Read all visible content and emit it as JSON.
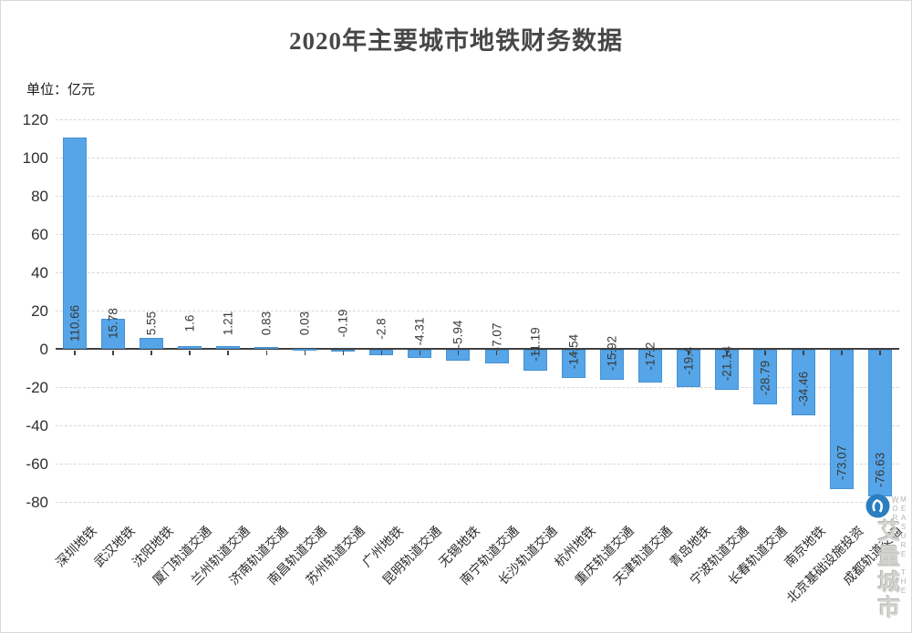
{
  "chart_data": {
    "type": "bar",
    "title": "2020年主要城市地铁财务数据",
    "unit_label": "单位：亿元",
    "categories": [
      "深圳地铁",
      "武汉地铁",
      "沈阳地铁",
      "厦门轨道交通",
      "兰州轨道交通",
      "济南轨道交通",
      "南昌轨道交通",
      "苏州轨道交通",
      "广州地铁",
      "昆明轨道交通",
      "无锡地铁",
      "南宁轨道交通",
      "长沙轨道交通",
      "杭州地铁",
      "重庆轨道交通",
      "天津轨道交通",
      "青岛地铁",
      "宁波轨道交通",
      "长春轨道交通",
      "南京地铁",
      "北京基础设施投资",
      "成都轨道交通"
    ],
    "values": [
      110.66,
      15.78,
      5.55,
      1.6,
      1.21,
      0.83,
      0.03,
      -0.19,
      -2.8,
      -4.31,
      -5.94,
      -7.07,
      -11.19,
      -14.54,
      -15.92,
      -17.2,
      -19.4,
      -21.14,
      -28.79,
      -34.46,
      -73.07,
      -76.63
    ],
    "value_labels": [
      "110.66",
      "15.78",
      "5.55",
      "1.6",
      "1.21",
      "0.83",
      "0.03",
      "-0.19",
      "-2.8",
      "-4.31",
      "-5.94",
      "-7.07",
      "-11.19",
      "-14.54",
      "-15.92",
      "-17.2",
      "-19.4",
      "-21.14",
      "-28.79",
      "-34.46",
      "-73.07",
      "-76.63"
    ],
    "yticks": [
      120,
      100,
      80,
      60,
      40,
      20,
      0,
      -20,
      -40,
      -60,
      -80
    ],
    "ylim": [
      -80,
      120
    ],
    "grid": "dashed",
    "legend": "none",
    "bar_color": "#55a5e8",
    "axis_color": "#3f3f3f"
  },
  "watermark": {
    "brand": "艾量城市",
    "tagline": "MEASURE THE WORLD",
    "logo_color": "#2b7ec0"
  }
}
